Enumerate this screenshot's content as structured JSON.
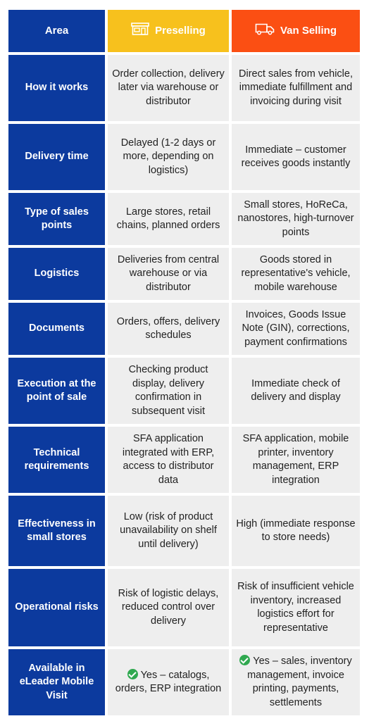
{
  "header": {
    "area": "Area",
    "preselling": "Preselling",
    "van_selling": "Van Selling",
    "preselling_icon": "storefront-icon",
    "van_icon": "van-icon"
  },
  "rows": [
    {
      "area": "How it works",
      "preselling": "Order collection, delivery later via warehouse or distributor",
      "van": "Direct sales from vehicle, immediate fulfillment and invoicing during visit"
    },
    {
      "area": "Delivery time",
      "preselling": "Delayed (1-2 days or more, depending on logistics)",
      "van": "Immediate – customer receives goods instantly"
    },
    {
      "area": "Type of sales points",
      "preselling": "Large stores, retail chains, planned orders",
      "van": "Small stores, HoReCa, nanostores, high-turnover points"
    },
    {
      "area": "Logistics",
      "preselling": "Deliveries from central warehouse or via distributor",
      "van": "Goods stored in representative's vehicle, mobile warehouse"
    },
    {
      "area": "Documents",
      "preselling": "Orders, offers, delivery schedules",
      "van": "Invoices, Goods Issue Note (GIN), corrections, payment confirmations"
    },
    {
      "area": "Execution at the point of sale",
      "preselling": "Checking product display, delivery confirmation in subsequent visit",
      "van": "Immediate check of delivery and display"
    },
    {
      "area": "Technical requirements",
      "preselling": "SFA application integrated with ERP, access to distributor data",
      "van": "SFA application, mobile printer, inventory management, ERP integration"
    },
    {
      "area": "Effectiveness in small stores",
      "preselling": "Low (risk of product unavailability on shelf until delivery)",
      "van": "High (immediate response to store needs)"
    },
    {
      "area": "Operational risks",
      "preselling": "Risk of logistic delays, reduced control over delivery",
      "van": "Risk of insufficient vehicle inventory, increased logistics effort for representative"
    },
    {
      "area": "Available in eLeader Mobile Visit",
      "preselling": "Yes – catalogs, orders, ERP integration",
      "van": "Yes – sales, inventory management, invoice printing, payments, settlements"
    }
  ],
  "colors": {
    "area": "#0c3a9e",
    "preselling": "#f7c11d",
    "van": "#fb4f13",
    "cell": "#eeeeee",
    "check": "#2fa84f"
  }
}
